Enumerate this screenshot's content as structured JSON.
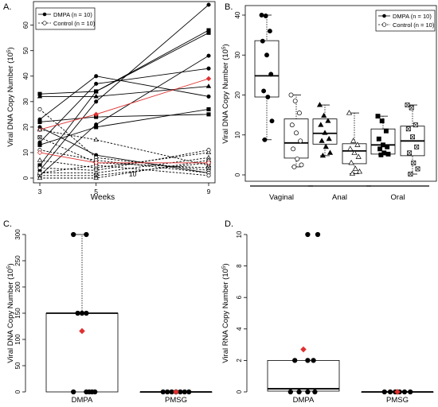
{
  "chart_data": [
    {
      "panel": "A.",
      "type": "line",
      "xlabel": "Weeks",
      "ylabel": "Viral DNA Copy Number (10^5)",
      "ylabel_base": "Viral DNA Copy Number (10",
      "ylabel_exp": "5",
      "ylabel_tail": ")",
      "x_ticks": [
        "3",
        "5",
        "9"
      ],
      "xlim": [
        3,
        9
      ],
      "ylim": [
        0,
        68
      ],
      "y_ticks": [
        "0",
        "10",
        "20",
        "30",
        "40",
        "50",
        "60"
      ],
      "annotations": [
        {
          "text": "10",
          "x": 6.3,
          "y": 0
        }
      ],
      "legend": {
        "position": "top-left",
        "entries": [
          "DMPA (n = 10)",
          "Control (n = 10)"
        ]
      },
      "series": [
        {
          "group": "DMPA",
          "x": [
            3,
            5,
            9
          ],
          "y": [
            23,
            40,
            32
          ]
        },
        {
          "group": "DMPA",
          "x": [
            3,
            5,
            9
          ],
          "y": [
            33,
            34,
            57
          ]
        },
        {
          "group": "DMPA",
          "x": [
            3,
            5,
            9
          ],
          "y": [
            32,
            32,
            36
          ]
        },
        {
          "group": "DMPA",
          "x": [
            3,
            5,
            9
          ],
          "y": [
            22,
            24,
            25
          ]
        },
        {
          "group": "DMPA",
          "x": [
            3,
            5,
            9
          ],
          "y": [
            20,
            9,
            2
          ]
        },
        {
          "group": "DMPA",
          "x": [
            3,
            5,
            9
          ],
          "y": [
            14,
            37,
            43
          ]
        },
        {
          "group": "DMPA",
          "x": [
            3,
            5,
            9
          ],
          "y": [
            13,
            20,
            27
          ]
        },
        {
          "group": "DMPA",
          "x": [
            3,
            5,
            9
          ],
          "y": [
            5,
            34,
            58
          ]
        },
        {
          "group": "DMPA",
          "x": [
            3,
            5,
            9
          ],
          "y": [
            3,
            30,
            68
          ]
        },
        {
          "group": "DMPA",
          "x": [
            3,
            5,
            9
          ],
          "y": [
            1,
            21,
            48
          ]
        },
        {
          "group": "DMPA-mean",
          "x": [
            3,
            5,
            9
          ],
          "y": [
            19,
            25,
            39
          ]
        },
        {
          "group": "Control",
          "x": [
            3,
            5,
            9
          ],
          "y": [
            27,
            8,
            3
          ]
        },
        {
          "group": "Control",
          "x": [
            3,
            5,
            9
          ],
          "y": [
            19,
            15,
            5
          ]
        },
        {
          "group": "Control",
          "x": [
            3,
            5,
            9
          ],
          "y": [
            16,
            6,
            4
          ]
        },
        {
          "group": "Control",
          "x": [
            3,
            5,
            9
          ],
          "y": [
            11,
            7,
            2
          ]
        },
        {
          "group": "Control",
          "x": [
            3,
            5,
            9
          ],
          "y": [
            7,
            4,
            10
          ]
        },
        {
          "group": "Control",
          "x": [
            3,
            5,
            9
          ],
          "y": [
            4,
            3,
            11
          ]
        },
        {
          "group": "Control",
          "x": [
            3,
            5,
            9
          ],
          "y": [
            2,
            2,
            8
          ]
        },
        {
          "group": "Control",
          "x": [
            3,
            5,
            9
          ],
          "y": [
            1,
            1,
            6
          ]
        },
        {
          "group": "Control",
          "x": [
            3,
            5,
            9
          ],
          "y": [
            2,
            5,
            1
          ]
        },
        {
          "group": "Control",
          "x": [
            3,
            5,
            9
          ],
          "y": [
            0,
            0,
            7
          ]
        },
        {
          "group": "Control-mean",
          "x": [
            3,
            5,
            9
          ],
          "y": [
            10,
            6,
            6
          ]
        }
      ]
    },
    {
      "panel": "B.",
      "type": "box",
      "ylabel": "Viral DNA Copy Number (10^5)",
      "ylabel_base": "Viral DNA Copy Number (10",
      "ylabel_exp": "5",
      "ylabel_tail": ")",
      "ylim": [
        0,
        40
      ],
      "y_ticks": [
        "0",
        "10",
        "20",
        "30",
        "40"
      ],
      "categories": [
        "Vaginal",
        "Anal",
        "Oral"
      ],
      "legend": {
        "position": "top-right",
        "entries": [
          "DMPA (n = 10)",
          "Control (n = 10)"
        ]
      },
      "boxes": [
        {
          "site": "Vaginal",
          "group": "DMPA",
          "marker": "circle",
          "filled": true,
          "whisker": [
            8.8,
            40
          ],
          "q1": 19.5,
          "median": 24.8,
          "q3": 33.6,
          "points": [
            40,
            39.8,
            36,
            33.5,
            30,
            25.2,
            21,
            19.5,
            13.5,
            8.8
          ]
        },
        {
          "site": "Vaginal",
          "group": "Control",
          "marker": "circle",
          "filled": false,
          "whisker": [
            2,
            20
          ],
          "q1": 4.2,
          "median": 8,
          "q3": 14,
          "points": [
            20,
            18.5,
            15.5,
            12.5,
            10.5,
            8.5,
            6.5,
            4,
            2.5,
            2
          ]
        },
        {
          "site": "Anal",
          "group": "DMPA",
          "marker": "triangle",
          "filled": true,
          "whisker": [
            4.8,
            17.5
          ],
          "q1": 7.7,
          "median": 10.4,
          "q3": 14,
          "points": [
            17.5,
            14.8,
            13.5,
            12.5,
            10.5,
            9,
            8.5,
            7,
            5.5,
            4.8
          ]
        },
        {
          "site": "Anal",
          "group": "Control",
          "marker": "triangle",
          "filled": false,
          "whisker": [
            0.3,
            15.5
          ],
          "q1": 2.8,
          "median": 6,
          "q3": 7.8,
          "points": [
            15.5,
            8.5,
            7.5,
            6.5,
            5.5,
            4.5,
            3,
            1.5,
            0.8,
            0.3
          ]
        },
        {
          "site": "Oral",
          "group": "DMPA",
          "marker": "square",
          "filled": true,
          "whisker": [
            5,
            14.7
          ],
          "q1": 5.2,
          "median": 7.5,
          "q3": 11.5,
          "points": [
            14.7,
            13.5,
            11,
            9,
            7.5,
            7,
            6.5,
            5.5,
            5.2,
            5
          ]
        },
        {
          "site": "Oral",
          "group": "Control",
          "marker": "square-x",
          "filled": false,
          "whisker": [
            0.2,
            17.5
          ],
          "q1": 4.8,
          "median": 8.5,
          "q3": 12.2,
          "points": [
            17.5,
            16.8,
            12.5,
            11.5,
            9.5,
            7,
            5.5,
            3,
            1.5,
            0.2
          ]
        }
      ]
    },
    {
      "panel": "C.",
      "type": "box",
      "ylabel": "Viral DNA Copy Number (10^5)",
      "ylabel_base": "Viral DNA Copy Number (10",
      "ylabel_exp": "5",
      "ylabel_tail": ")",
      "ylim": [
        0,
        300
      ],
      "y_ticks": [
        "0",
        "50",
        "100",
        "150",
        "200",
        "250",
        "300"
      ],
      "categories": [
        "DMPA",
        "PMSG"
      ],
      "boxes": [
        {
          "group": "DMPA",
          "q1": 0,
          "median": 150,
          "q3": 150,
          "whisker": [
            0,
            300
          ],
          "mean": 116,
          "points": [
            {
              "x": -0.12,
              "y": 300
            },
            {
              "x": 0.06,
              "y": 300
            },
            {
              "x": -0.06,
              "y": 150
            },
            {
              "x": 0,
              "y": 150
            },
            {
              "x": 0.06,
              "y": 150
            },
            {
              "x": -0.12,
              "y": 0
            },
            {
              "x": 0.06,
              "y": 0
            },
            {
              "x": 0.1,
              "y": 0
            },
            {
              "x": 0.14,
              "y": 0
            },
            {
              "x": 0.18,
              "y": 0
            }
          ]
        },
        {
          "group": "PMSG",
          "q1": 0,
          "median": 0,
          "q3": 0,
          "whisker": [
            0,
            0
          ],
          "mean": 0,
          "points": [
            {
              "x": -0.18,
              "y": 0
            },
            {
              "x": -0.12,
              "y": 0
            },
            {
              "x": -0.06,
              "y": 0
            },
            {
              "x": 0,
              "y": 0
            },
            {
              "x": 0.06,
              "y": 0
            },
            {
              "x": 0.12,
              "y": 0
            },
            {
              "x": 0.18,
              "y": 0
            }
          ]
        }
      ]
    },
    {
      "panel": "D.",
      "type": "box",
      "ylabel": "Viral RNA Copy Number (10^5)",
      "ylabel_base": "Viral RNA Copy Number (10",
      "ylabel_exp": "5",
      "ylabel_tail": ")",
      "ylim": [
        0,
        10
      ],
      "y_ticks": [
        "0",
        "2",
        "4",
        "6",
        "8",
        "10"
      ],
      "categories": [
        "DMPA",
        "PMSG"
      ],
      "boxes": [
        {
          "group": "DMPA",
          "q1": 0.05,
          "median": 0.2,
          "q3": 2,
          "whisker": [
            0,
            2
          ],
          "mean": 2.7,
          "points": [
            {
              "x": 0.06,
              "y": 10
            },
            {
              "x": 0.2,
              "y": 10
            },
            {
              "x": -0.12,
              "y": 2
            },
            {
              "x": 0.06,
              "y": 2
            },
            {
              "x": 0.14,
              "y": 2
            },
            {
              "x": -0.18,
              "y": 0
            },
            {
              "x": -0.06,
              "y": 0
            },
            {
              "x": 0.06,
              "y": 0
            },
            {
              "x": 0.16,
              "y": 0
            }
          ]
        },
        {
          "group": "PMSG",
          "q1": 0,
          "median": 0,
          "q3": 0,
          "whisker": [
            0,
            0
          ],
          "mean": 0,
          "points": [
            {
              "x": -0.18,
              "y": 0
            },
            {
              "x": -0.1,
              "y": 0
            },
            {
              "x": -0.03,
              "y": 0
            },
            {
              "x": 0.03,
              "y": 0
            },
            {
              "x": 0.1,
              "y": 0
            },
            {
              "x": 0.18,
              "y": 0
            }
          ]
        }
      ]
    }
  ]
}
